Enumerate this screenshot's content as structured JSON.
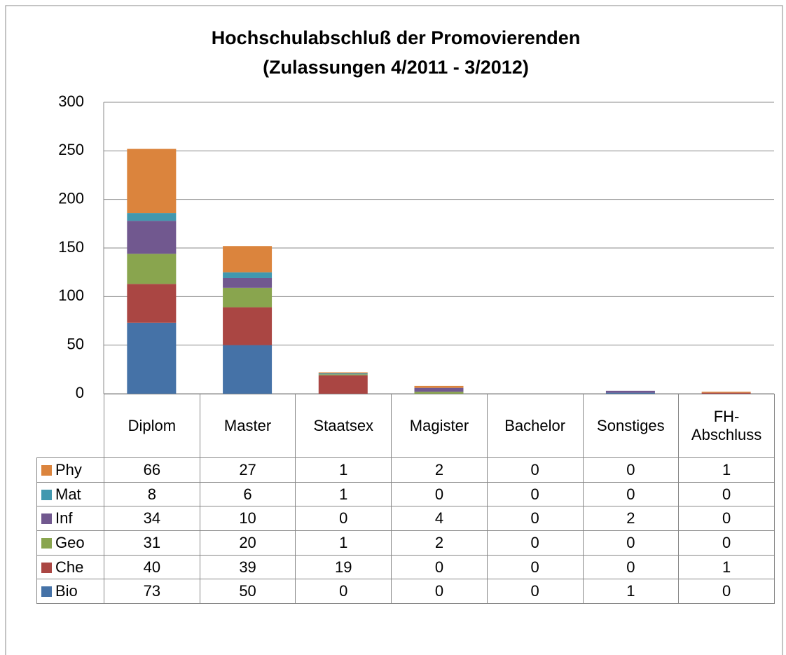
{
  "chart_data": {
    "type": "bar",
    "stacked": true,
    "title": [
      "Hochschulabschluß der Promovierenden",
      "(Zulassungen 4/2011 - 3/2012)"
    ],
    "categories": [
      "Diplom",
      "Master",
      "Staatsex",
      "Magister",
      "Bachelor",
      "Sonstiges",
      "FH-Abschluss"
    ],
    "series": [
      {
        "name": "Bio",
        "color": "#4572a7",
        "values": [
          73,
          50,
          0,
          0,
          0,
          1,
          0
        ]
      },
      {
        "name": "Che",
        "color": "#aa4643",
        "values": [
          40,
          39,
          19,
          0,
          0,
          0,
          1
        ]
      },
      {
        "name": "Geo",
        "color": "#89a54e",
        "values": [
          31,
          20,
          1,
          2,
          0,
          0,
          0
        ]
      },
      {
        "name": "Inf",
        "color": "#71588f",
        "values": [
          34,
          10,
          0,
          4,
          0,
          2,
          0
        ]
      },
      {
        "name": "Mat",
        "color": "#4198af",
        "values": [
          8,
          6,
          1,
          0,
          0,
          0,
          0
        ]
      },
      {
        "name": "Phy",
        "color": "#db843d",
        "values": [
          66,
          27,
          1,
          2,
          0,
          0,
          1
        ]
      }
    ],
    "ylim": [
      0,
      300
    ],
    "yticks": [
      0,
      50,
      100,
      150,
      200,
      250,
      300
    ],
    "grid": true,
    "data_table": true
  }
}
